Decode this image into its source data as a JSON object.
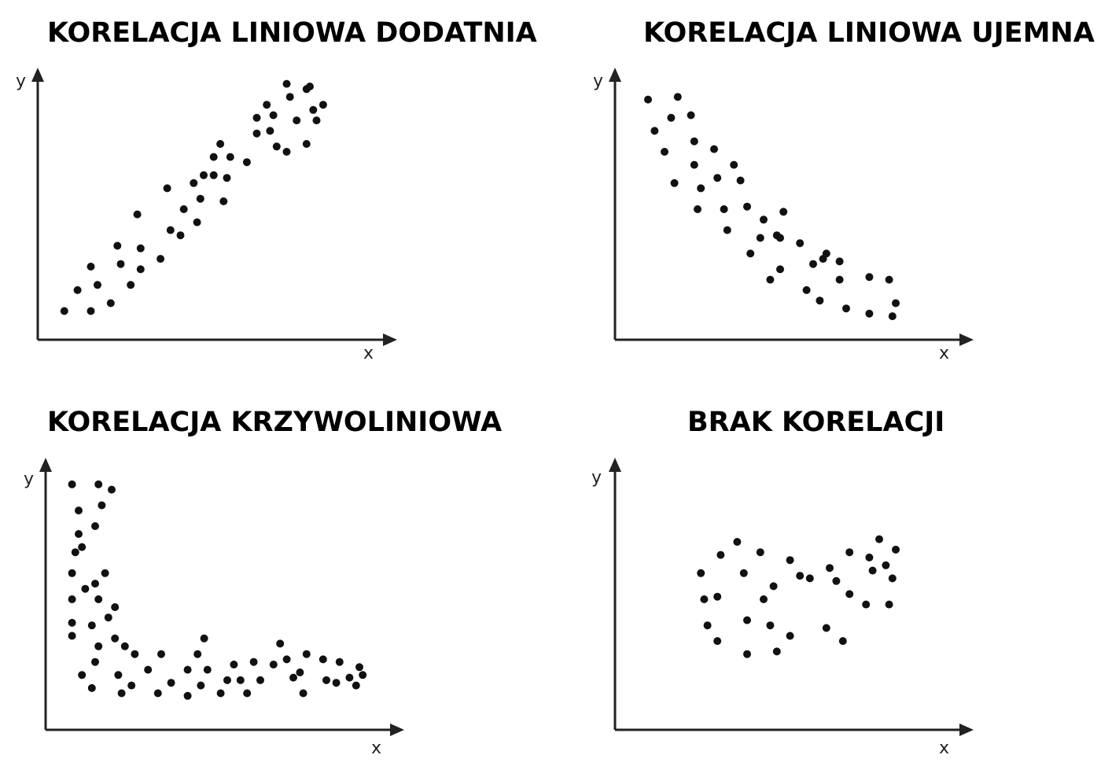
{
  "chart_data": [
    {
      "type": "scatter",
      "title": "KORELACJA LINIOWA DODATNIA",
      "xlabel": "x",
      "ylabel": "y",
      "xlim": [
        0,
        100
      ],
      "ylim": [
        0,
        100
      ],
      "grid": false,
      "marker_color": "#111111",
      "points": [
        [
          8,
          11
        ],
        [
          12,
          19
        ],
        [
          16,
          11
        ],
        [
          16,
          28
        ],
        [
          18,
          21
        ],
        [
          22,
          14
        ],
        [
          24,
          36
        ],
        [
          25,
          29
        ],
        [
          28,
          21
        ],
        [
          30,
          48
        ],
        [
          31,
          27
        ],
        [
          31,
          35
        ],
        [
          37,
          31
        ],
        [
          39,
          58
        ],
        [
          40,
          42
        ],
        [
          43,
          40
        ],
        [
          44,
          50
        ],
        [
          47,
          60
        ],
        [
          48,
          45
        ],
        [
          49,
          54
        ],
        [
          50,
          63
        ],
        [
          53,
          63
        ],
        [
          53,
          70
        ],
        [
          55,
          75
        ],
        [
          56,
          53
        ],
        [
          57,
          62
        ],
        [
          58,
          70
        ],
        [
          63,
          68
        ],
        [
          66,
          85
        ],
        [
          66,
          79
        ],
        [
          69,
          90
        ],
        [
          70,
          80
        ],
        [
          71,
          86
        ],
        [
          72,
          74
        ],
        [
          75,
          72
        ],
        [
          75,
          98
        ],
        [
          76,
          93
        ],
        [
          78,
          84
        ],
        [
          81,
          75
        ],
        [
          81,
          96
        ],
        [
          82,
          97
        ],
        [
          83,
          88
        ],
        [
          84,
          84
        ],
        [
          86,
          90
        ]
      ]
    },
    {
      "type": "scatter",
      "title": "KORELACJA LINIOWA UJEMNA",
      "xlabel": "x",
      "ylabel": "y",
      "xlim": [
        0,
        100
      ],
      "ylim": [
        0,
        100
      ],
      "grid": false,
      "marker_color": "#111111",
      "points": [
        [
          10,
          92
        ],
        [
          12,
          80
        ],
        [
          15,
          72
        ],
        [
          17,
          85
        ],
        [
          18,
          60
        ],
        [
          19,
          93
        ],
        [
          23,
          86
        ],
        [
          24,
          76
        ],
        [
          24,
          67
        ],
        [
          25,
          50
        ],
        [
          26,
          58
        ],
        [
          30,
          73
        ],
        [
          31,
          62
        ],
        [
          33,
          50
        ],
        [
          34,
          42
        ],
        [
          36,
          67
        ],
        [
          38,
          61
        ],
        [
          40,
          51
        ],
        [
          41,
          33
        ],
        [
          44,
          39
        ],
        [
          45,
          46
        ],
        [
          47,
          23
        ],
        [
          49,
          40
        ],
        [
          50,
          39
        ],
        [
          50,
          27
        ],
        [
          51,
          49
        ],
        [
          56,
          37
        ],
        [
          58,
          19
        ],
        [
          60,
          29
        ],
        [
          62,
          15
        ],
        [
          63,
          31
        ],
        [
          64,
          33
        ],
        [
          68,
          23
        ],
        [
          68,
          30
        ],
        [
          70,
          12
        ],
        [
          77,
          24
        ],
        [
          77,
          10
        ],
        [
          83,
          23
        ],
        [
          84,
          9
        ],
        [
          85,
          14
        ]
      ]
    },
    {
      "type": "scatter",
      "title": "KORELACJA KRZYWOLINIOWA",
      "xlabel": "x",
      "ylabel": "y",
      "xlim": [
        0,
        100
      ],
      "ylim": [
        0,
        100
      ],
      "grid": false,
      "marker_color": "#111111",
      "points": [
        [
          8,
          94
        ],
        [
          8,
          60
        ],
        [
          8,
          50
        ],
        [
          8,
          41
        ],
        [
          8,
          36
        ],
        [
          9,
          68
        ],
        [
          10,
          84
        ],
        [
          10,
          75
        ],
        [
          11,
          70
        ],
        [
          11,
          21
        ],
        [
          12,
          54
        ],
        [
          14,
          16
        ],
        [
          14,
          40
        ],
        [
          15,
          26
        ],
        [
          15,
          56
        ],
        [
          15,
          78
        ],
        [
          16,
          32
        ],
        [
          16,
          94
        ],
        [
          16,
          50
        ],
        [
          17,
          86
        ],
        [
          18,
          60
        ],
        [
          19,
          43
        ],
        [
          20,
          92
        ],
        [
          21,
          35
        ],
        [
          21,
          47
        ],
        [
          22,
          21
        ],
        [
          23,
          14
        ],
        [
          24,
          32
        ],
        [
          26,
          17
        ],
        [
          27,
          29
        ],
        [
          31,
          23
        ],
        [
          34,
          14
        ],
        [
          35,
          29
        ],
        [
          38,
          18
        ],
        [
          43,
          23
        ],
        [
          43,
          13
        ],
        [
          46,
          29
        ],
        [
          47,
          17
        ],
        [
          48,
          35
        ],
        [
          49,
          23
        ],
        [
          53,
          14
        ],
        [
          55,
          19
        ],
        [
          57,
          25
        ],
        [
          59,
          19
        ],
        [
          61,
          14
        ],
        [
          63,
          26
        ],
        [
          65,
          19
        ],
        [
          69,
          25
        ],
        [
          71,
          33
        ],
        [
          73,
          27
        ],
        [
          75,
          20
        ],
        [
          77,
          22
        ],
        [
          78,
          14
        ],
        [
          79,
          29
        ],
        [
          84,
          27
        ],
        [
          85,
          19
        ],
        [
          88,
          18
        ],
        [
          89,
          26
        ],
        [
          92,
          20
        ],
        [
          94,
          17
        ],
        [
          95,
          24
        ],
        [
          96,
          21
        ]
      ]
    },
    {
      "type": "scatter",
      "title": "BRAK KORELACJI",
      "xlabel": "x",
      "ylabel": "y",
      "xlim": [
        0,
        100
      ],
      "ylim": [
        0,
        100
      ],
      "grid": false,
      "marker_color": "#111111",
      "points": [
        [
          26,
          60
        ],
        [
          27,
          50
        ],
        [
          28,
          40
        ],
        [
          31,
          34
        ],
        [
          31,
          51
        ],
        [
          32,
          67
        ],
        [
          37,
          72
        ],
        [
          39,
          60
        ],
        [
          40,
          29
        ],
        [
          40,
          42
        ],
        [
          44,
          68
        ],
        [
          45,
          50
        ],
        [
          47,
          40
        ],
        [
          48,
          55
        ],
        [
          49,
          30
        ],
        [
          53,
          65
        ],
        [
          53,
          36
        ],
        [
          56,
          59
        ],
        [
          59,
          58
        ],
        [
          64,
          39
        ],
        [
          65,
          62
        ],
        [
          67,
          57
        ],
        [
          69,
          34
        ],
        [
          71,
          52
        ],
        [
          71,
          68
        ],
        [
          76,
          48
        ],
        [
          77,
          66
        ],
        [
          78,
          61
        ],
        [
          80,
          73
        ],
        [
          82,
          63
        ],
        [
          83,
          48
        ],
        [
          84,
          58
        ],
        [
          85,
          69
        ]
      ]
    }
  ]
}
